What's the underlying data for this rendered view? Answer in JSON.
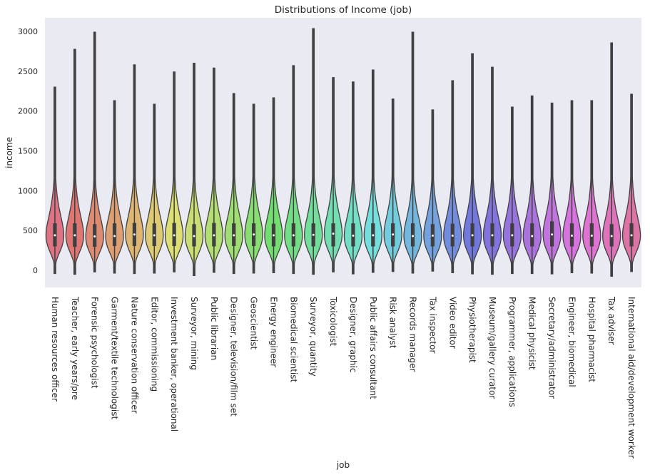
{
  "chart_data": {
    "type": "violin",
    "title": "Distributions of Income (job)",
    "xlabel": "job",
    "ylabel": "income",
    "ylim": [
      -220,
      3170
    ],
    "yticks": [
      0,
      500,
      1000,
      1500,
      2000,
      2500,
      3000
    ],
    "grid": false,
    "categories": [
      "Human resources officer",
      "Teacher, early years/pre",
      "Forensic psychologist",
      "Garment/textile technologist",
      "Nature conservation officer",
      "Editor, commissioning",
      "Investment banker, operational",
      "Surveyor, mining",
      "Public librarian",
      "Designer, television/film set",
      "Geoscientist",
      "Energy engineer",
      "Biomedical scientist",
      "Surveyor, quantity",
      "Toxicologist",
      "Designer, graphic",
      "Public affairs consultant",
      "Risk analyst",
      "Records manager",
      "Tax inspector",
      "Video editor",
      "Physiotherapist",
      "Museum/gallery curator",
      "Programmer, applications",
      "Medical physicist",
      "Secretary/administrator",
      "Engineer, biomedical",
      "Hospital pharmacist",
      "Tax adviser",
      "International aid/development worker"
    ],
    "max": [
      2300,
      2775,
      2990,
      2130,
      2580,
      2085,
      2490,
      2600,
      2540,
      2220,
      2085,
      2165,
      2570,
      3035,
      2420,
      2365,
      2515,
      2150,
      2990,
      2015,
      2380,
      2720,
      2550,
      2050,
      2190,
      2100,
      2130,
      2130,
      2855,
      2210
    ],
    "min": [
      -40,
      -50,
      -20,
      -35,
      -40,
      -35,
      -20,
      -65,
      -25,
      -40,
      -35,
      -30,
      -40,
      -50,
      -20,
      -45,
      -25,
      -15,
      -35,
      -10,
      -30,
      -45,
      -50,
      -40,
      -40,
      -45,
      -30,
      -35,
      -75,
      -15
    ],
    "q1": [
      300,
      295,
      295,
      305,
      305,
      305,
      305,
      300,
      300,
      305,
      305,
      300,
      300,
      300,
      300,
      300,
      300,
      300,
      300,
      300,
      300,
      300,
      300,
      300,
      300,
      300,
      300,
      300,
      300,
      300
    ],
    "median": [
      440,
      440,
      425,
      430,
      450,
      440,
      440,
      430,
      440,
      440,
      450,
      440,
      440,
      445,
      460,
      435,
      440,
      450,
      430,
      435,
      435,
      440,
      440,
      440,
      430,
      450,
      435,
      435,
      430,
      440
    ],
    "q3": [
      590,
      590,
      580,
      590,
      595,
      590,
      595,
      580,
      595,
      590,
      590,
      585,
      590,
      590,
      590,
      590,
      590,
      590,
      590,
      580,
      585,
      590,
      590,
      590,
      590,
      615,
      590,
      590,
      580,
      590
    ]
  }
}
